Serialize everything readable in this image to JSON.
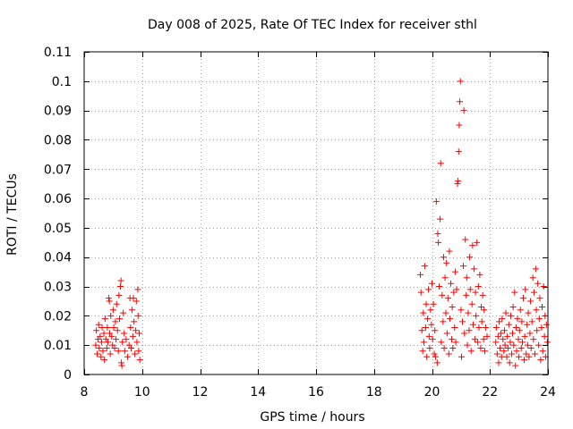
{
  "chart_data": {
    "type": "scatter",
    "title": "Day 008 of 2025, Rate Of TEC Index for receiver sthl",
    "xlabel": "GPS time / hours",
    "ylabel": "ROTI / TECUs",
    "xlim": [
      8,
      24
    ],
    "ylim": [
      0,
      0.11
    ],
    "xticks": [
      8,
      10,
      12,
      14,
      16,
      18,
      20,
      22,
      24
    ],
    "xtick_labels": [
      "8",
      "10",
      "12",
      "14",
      "16",
      "18",
      "20",
      "22",
      "24"
    ],
    "yticks": [
      0,
      0.01,
      0.02,
      0.03,
      0.04,
      0.05,
      0.06,
      0.07,
      0.08,
      0.09,
      0.1,
      0.11
    ],
    "ytick_labels": [
      "0",
      "0.01",
      "0.02",
      "0.03",
      "0.04",
      "0.05",
      "0.06",
      "0.07",
      "0.08",
      "0.09",
      "0.1",
      "0.11"
    ],
    "grid": true,
    "marker": "+",
    "series": [
      {
        "name": "ROTI",
        "color": "#ff0000",
        "points": [
          [
            8.4,
            0.01
          ],
          [
            8.42,
            0.015
          ],
          [
            8.45,
            0.007
          ],
          [
            8.48,
            0.012
          ],
          [
            8.5,
            0.017
          ],
          [
            8.52,
            0.009
          ],
          [
            8.55,
            0.013
          ],
          [
            8.58,
            0.006
          ],
          [
            8.6,
            0.011
          ],
          [
            8.62,
            0.016
          ],
          [
            8.65,
            0.008
          ],
          [
            8.68,
            0.014
          ],
          [
            8.7,
            0.005
          ],
          [
            8.72,
            0.019
          ],
          [
            8.75,
            0.012
          ],
          [
            8.78,
            0.009
          ],
          [
            8.8,
            0.016
          ],
          [
            8.82,
            0.011
          ],
          [
            8.85,
            0.026
          ],
          [
            8.87,
            0.025
          ],
          [
            8.88,
            0.014
          ],
          [
            8.9,
            0.007
          ],
          [
            8.92,
            0.02
          ],
          [
            8.95,
            0.013
          ],
          [
            8.98,
            0.01
          ],
          [
            9.0,
            0.022
          ],
          [
            9.02,
            0.016
          ],
          [
            9.05,
            0.009
          ],
          [
            9.08,
            0.018
          ],
          [
            9.1,
            0.012
          ],
          [
            9.12,
            0.024
          ],
          [
            9.15,
            0.015
          ],
          [
            9.18,
            0.008
          ],
          [
            9.2,
            0.027
          ],
          [
            9.22,
            0.019
          ],
          [
            9.25,
            0.03
          ],
          [
            9.27,
            0.032
          ],
          [
            9.28,
            0.004
          ],
          [
            9.3,
            0.003
          ],
          [
            9.32,
            0.011
          ],
          [
            9.35,
            0.021
          ],
          [
            9.38,
            0.014
          ],
          [
            9.4,
            0.008
          ],
          [
            9.45,
            0.012
          ],
          [
            9.5,
            0.006
          ],
          [
            9.55,
            0.01
          ],
          [
            9.58,
            0.026
          ],
          [
            9.6,
            0.016
          ],
          [
            9.62,
            0.009
          ],
          [
            9.65,
            0.022
          ],
          [
            9.68,
            0.013
          ],
          [
            9.7,
            0.026
          ],
          [
            9.72,
            0.018
          ],
          [
            9.75,
            0.007
          ],
          [
            9.78,
            0.015
          ],
          [
            9.8,
            0.025
          ],
          [
            9.82,
            0.011
          ],
          [
            9.85,
            0.029
          ],
          [
            9.86,
            0.02
          ],
          [
            9.88,
            0.008
          ],
          [
            9.9,
            0.014
          ],
          [
            9.92,
            0.005
          ],
          [
            19.6,
            0.034
          ],
          [
            19.62,
            0.028
          ],
          [
            19.65,
            0.015
          ],
          [
            19.68,
            0.008
          ],
          [
            19.7,
            0.021
          ],
          [
            19.72,
            0.011
          ],
          [
            19.75,
            0.037
          ],
          [
            19.78,
            0.016
          ],
          [
            19.8,
            0.024
          ],
          [
            19.82,
            0.006
          ],
          [
            19.85,
            0.019
          ],
          [
            19.88,
            0.029
          ],
          [
            19.9,
            0.013
          ],
          [
            19.92,
            0.009
          ],
          [
            19.95,
            0.022
          ],
          [
            19.98,
            0.017
          ],
          [
            20.0,
            0.031
          ],
          [
            20.02,
            0.012
          ],
          [
            20.05,
            0.024
          ],
          [
            20.08,
            0.007
          ],
          [
            20.1,
            0.015
          ],
          [
            20.12,
            0.006
          ],
          [
            20.15,
            0.059
          ],
          [
            20.18,
            0.004
          ],
          [
            20.2,
            0.048
          ],
          [
            20.22,
            0.045
          ],
          [
            20.25,
            0.03
          ],
          [
            20.28,
            0.053
          ],
          [
            20.3,
            0.072
          ],
          [
            20.32,
            0.011
          ],
          [
            20.35,
            0.027
          ],
          [
            20.38,
            0.018
          ],
          [
            20.4,
            0.04
          ],
          [
            20.42,
            0.009
          ],
          [
            20.45,
            0.033
          ],
          [
            20.48,
            0.021
          ],
          [
            20.5,
            0.038
          ],
          [
            20.52,
            0.014
          ],
          [
            20.55,
            0.026
          ],
          [
            20.58,
            0.007
          ],
          [
            20.6,
            0.042
          ],
          [
            20.62,
            0.019
          ],
          [
            20.65,
            0.031
          ],
          [
            20.68,
            0.012
          ],
          [
            20.7,
            0.023
          ],
          [
            20.72,
            0.009
          ],
          [
            20.75,
            0.028
          ],
          [
            20.78,
            0.016
          ],
          [
            20.8,
            0.035
          ],
          [
            20.82,
            0.011
          ],
          [
            20.85,
            0.029
          ],
          [
            20.88,
            0.065
          ],
          [
            20.9,
            0.066
          ],
          [
            20.92,
            0.076
          ],
          [
            20.94,
            0.085
          ],
          [
            20.96,
            0.093
          ],
          [
            20.98,
            0.1
          ],
          [
            21.0,
            0.022
          ],
          [
            21.02,
            0.006
          ],
          [
            21.05,
            0.018
          ],
          [
            21.08,
            0.037
          ],
          [
            21.1,
            0.09
          ],
          [
            21.12,
            0.014
          ],
          [
            21.15,
            0.046
          ],
          [
            21.18,
            0.027
          ],
          [
            21.2,
            0.033
          ],
          [
            21.22,
            0.01
          ],
          [
            21.25,
            0.021
          ],
          [
            21.28,
            0.015
          ],
          [
            21.3,
            0.04
          ],
          [
            21.32,
            0.029
          ],
          [
            21.35,
            0.008
          ],
          [
            21.38,
            0.024
          ],
          [
            21.4,
            0.044
          ],
          [
            21.42,
            0.017
          ],
          [
            21.45,
            0.036
          ],
          [
            21.48,
            0.012
          ],
          [
            21.5,
            0.028
          ],
          [
            21.52,
            0.02
          ],
          [
            21.55,
            0.045
          ],
          [
            21.58,
            0.011
          ],
          [
            21.6,
            0.03
          ],
          [
            21.62,
            0.016
          ],
          [
            21.65,
            0.034
          ],
          [
            21.68,
            0.009
          ],
          [
            21.7,
            0.023
          ],
          [
            21.72,
            0.018
          ],
          [
            21.75,
            0.027
          ],
          [
            21.78,
            0.012
          ],
          [
            21.8,
            0.022
          ],
          [
            21.82,
            0.008
          ],
          [
            21.85,
            0.016
          ],
          [
            21.9,
            0.013
          ],
          [
            22.2,
            0.011
          ],
          [
            22.22,
            0.016
          ],
          [
            22.25,
            0.007
          ],
          [
            22.28,
            0.013
          ],
          [
            22.3,
            0.004
          ],
          [
            22.32,
            0.018
          ],
          [
            22.35,
            0.009
          ],
          [
            22.38,
            0.014
          ],
          [
            22.4,
            0.006
          ],
          [
            22.42,
            0.019
          ],
          [
            22.45,
            0.012
          ],
          [
            22.48,
            0.008
          ],
          [
            22.5,
            0.015
          ],
          [
            22.52,
            0.01
          ],
          [
            22.55,
            0.021
          ],
          [
            22.58,
            0.006
          ],
          [
            22.6,
            0.013
          ],
          [
            22.62,
            0.009
          ],
          [
            22.65,
            0.017
          ],
          [
            22.68,
            0.004
          ],
          [
            22.7,
            0.011
          ],
          [
            22.72,
            0.02
          ],
          [
            22.75,
            0.007
          ],
          [
            22.78,
            0.014
          ],
          [
            22.8,
            0.023
          ],
          [
            22.82,
            0.01
          ],
          [
            22.85,
            0.028
          ],
          [
            22.88,
            0.003
          ],
          [
            22.9,
            0.016
          ],
          [
            22.92,
            0.008
          ],
          [
            22.95,
            0.019
          ],
          [
            22.98,
            0.012
          ],
          [
            23.0,
            0.006
          ],
          [
            23.02,
            0.015
          ],
          [
            23.05,
            0.022
          ],
          [
            23.08,
            0.009
          ],
          [
            23.1,
            0.018
          ],
          [
            23.12,
            0.011
          ],
          [
            23.15,
            0.026
          ],
          [
            23.18,
            0.005
          ],
          [
            23.2,
            0.013
          ],
          [
            23.22,
            0.029
          ],
          [
            23.25,
            0.007
          ],
          [
            23.28,
            0.017
          ],
          [
            23.3,
            0.01
          ],
          [
            23.32,
            0.021
          ],
          [
            23.35,
            0.006
          ],
          [
            23.38,
            0.014
          ],
          [
            23.4,
            0.025
          ],
          [
            23.42,
            0.009
          ],
          [
            23.45,
            0.018
          ],
          [
            23.48,
            0.033
          ],
          [
            23.5,
            0.012
          ],
          [
            23.52,
            0.028
          ],
          [
            23.55,
            0.007
          ],
          [
            23.58,
            0.036
          ],
          [
            23.6,
            0.022
          ],
          [
            23.62,
            0.015
          ],
          [
            23.65,
            0.031
          ],
          [
            23.68,
            0.01
          ],
          [
            23.7,
            0.019
          ],
          [
            23.72,
            0.026
          ],
          [
            23.75,
            0.005
          ],
          [
            23.78,
            0.016
          ],
          [
            23.8,
            0.023
          ],
          [
            23.82,
            0.008
          ],
          [
            23.85,
            0.03
          ],
          [
            23.88,
            0.013
          ],
          [
            23.9,
            0.02
          ],
          [
            23.92,
            0.006
          ],
          [
            23.95,
            0.017
          ],
          [
            23.98,
            0.011
          ]
        ]
      }
    ]
  }
}
